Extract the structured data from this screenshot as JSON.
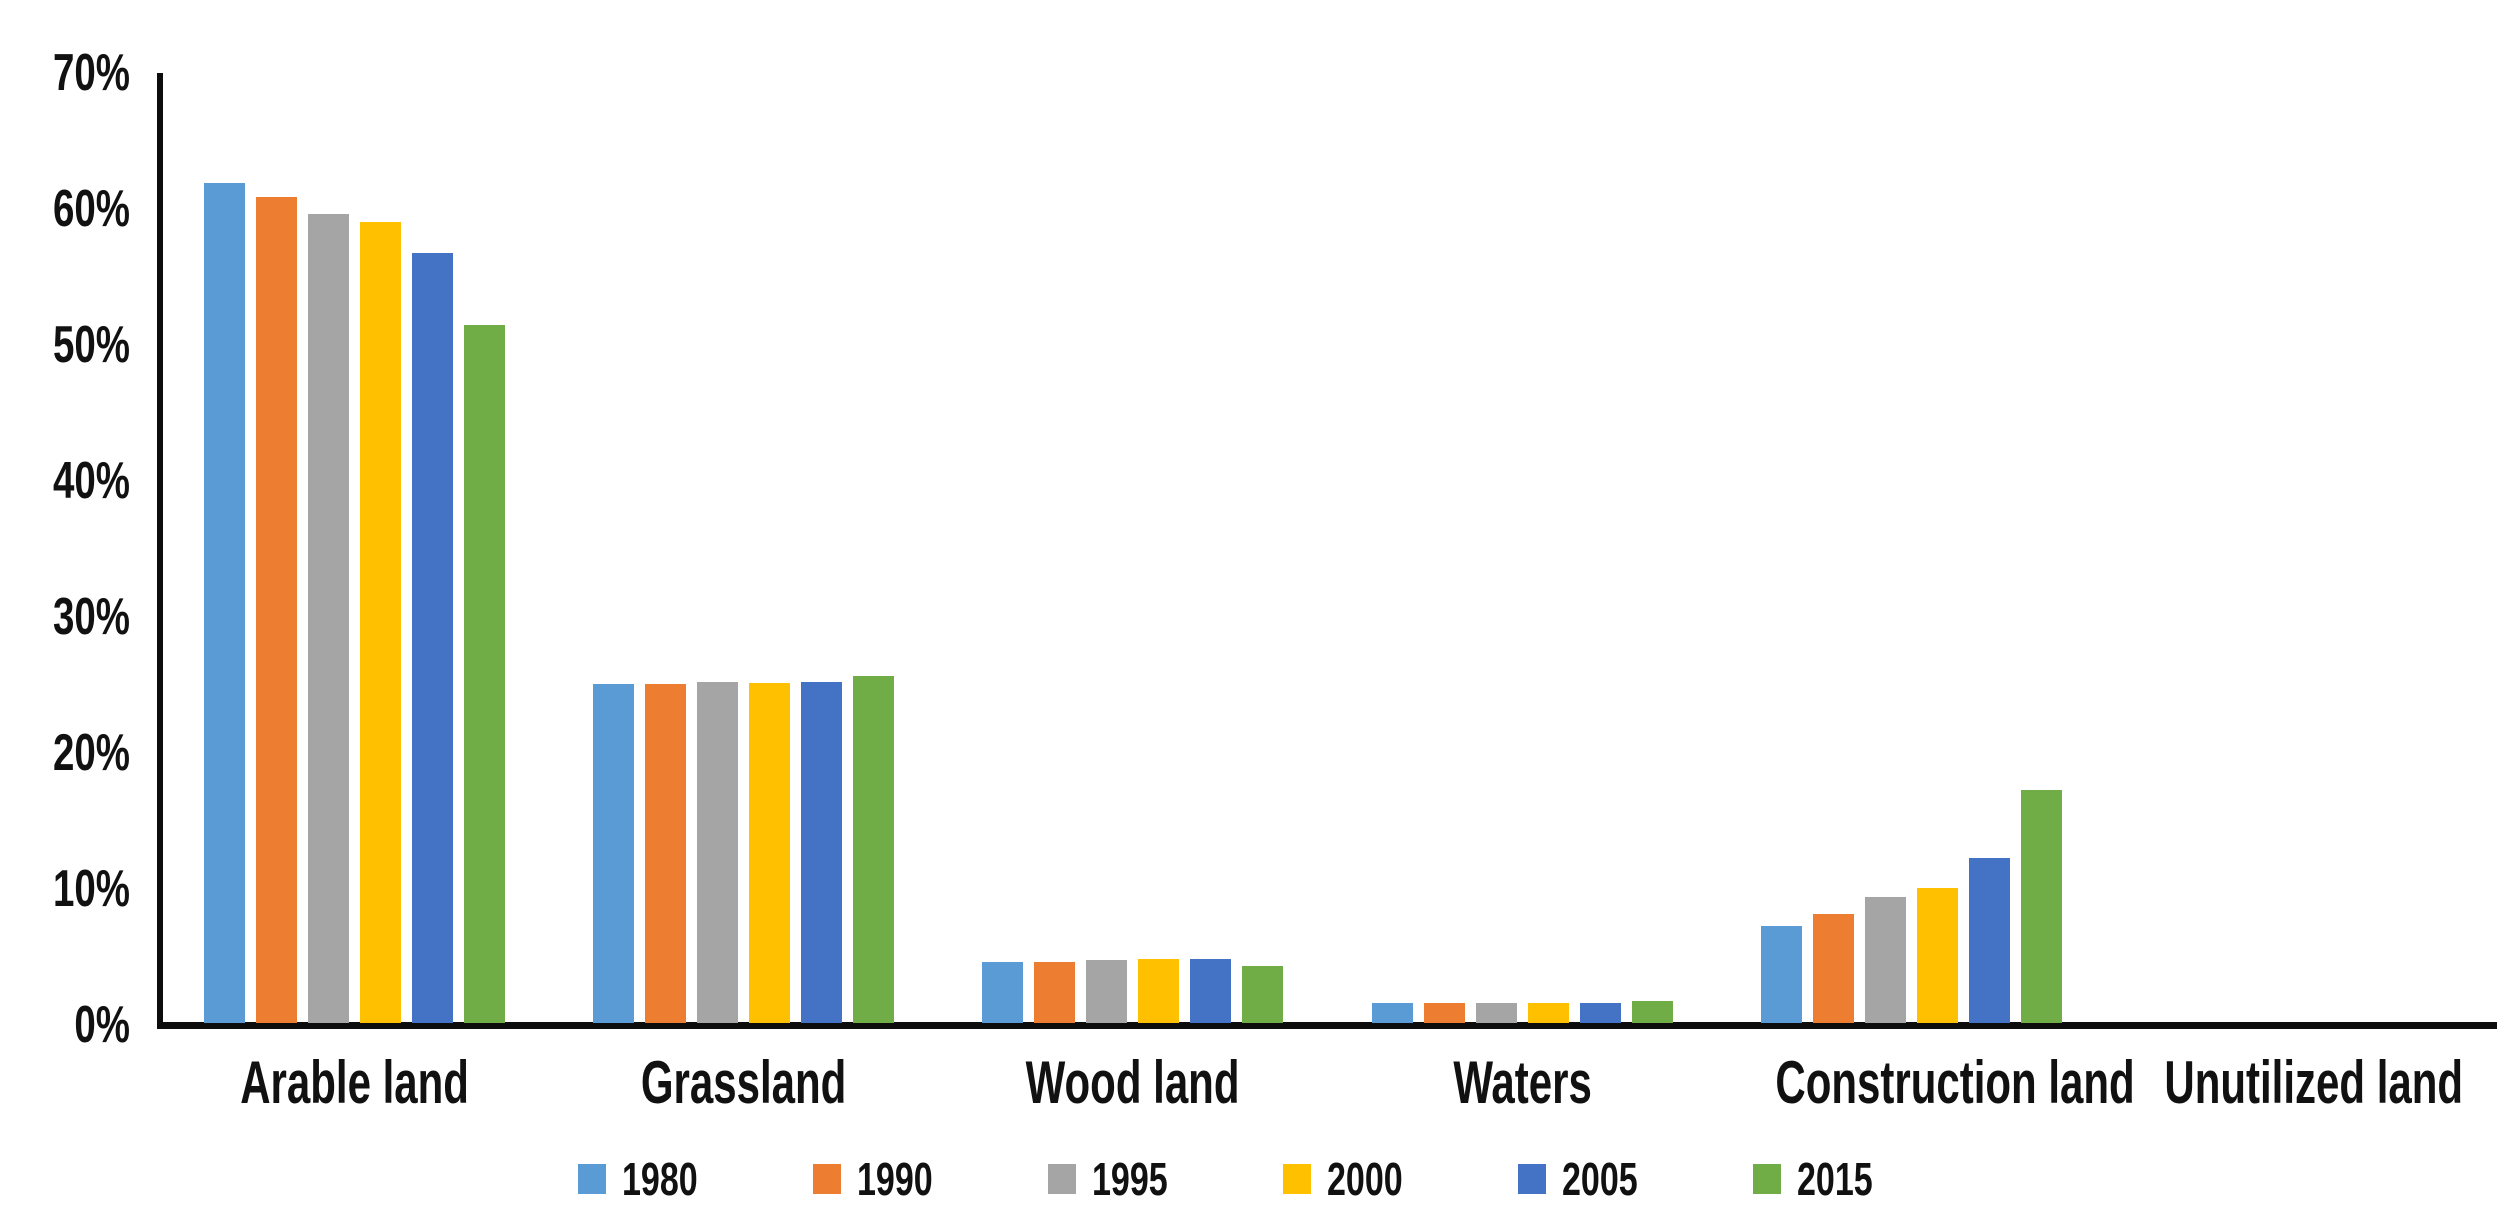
{
  "chart_data": {
    "type": "bar",
    "categories": [
      "Arable land",
      "Grassland",
      "Wood land",
      "Waters",
      "Construction land",
      "Unutilized land"
    ],
    "series": [
      {
        "name": "1980",
        "color": "#5B9BD5",
        "values": [
          61.8,
          24.9,
          4.5,
          1.5,
          7.1,
          0
        ]
      },
      {
        "name": "1990",
        "color": "#ED7D31",
        "values": [
          60.7,
          24.9,
          4.5,
          1.5,
          8.0,
          0
        ]
      },
      {
        "name": "1995",
        "color": "#A5A5A5",
        "values": [
          59.5,
          25.1,
          4.6,
          1.5,
          9.3,
          0
        ]
      },
      {
        "name": "2000",
        "color": "#FFC000",
        "values": [
          58.9,
          25.0,
          4.7,
          1.5,
          9.9,
          0
        ]
      },
      {
        "name": "2005",
        "color": "#4472C4",
        "values": [
          56.6,
          25.1,
          4.7,
          1.5,
          12.1,
          0
        ]
      },
      {
        "name": "2015",
        "color": "#70AD47",
        "values": [
          51.3,
          25.5,
          4.2,
          1.6,
          17.1,
          0
        ]
      }
    ],
    "y_axis": {
      "unit": "%",
      "min": 0,
      "max": 70,
      "tick_step": 10,
      "tick_labels": [
        "0%",
        "10%",
        "20%",
        "30%",
        "40%",
        "50%",
        "60%",
        "70%"
      ]
    },
    "legend": {
      "position": "bottom",
      "entries": [
        "1980",
        "1990",
        "1995",
        "2000",
        "2005",
        "2015"
      ]
    },
    "grid": false,
    "axis_color": "#0d0d0d",
    "text_color": "#111111",
    "background_color": "#ffffff"
  }
}
